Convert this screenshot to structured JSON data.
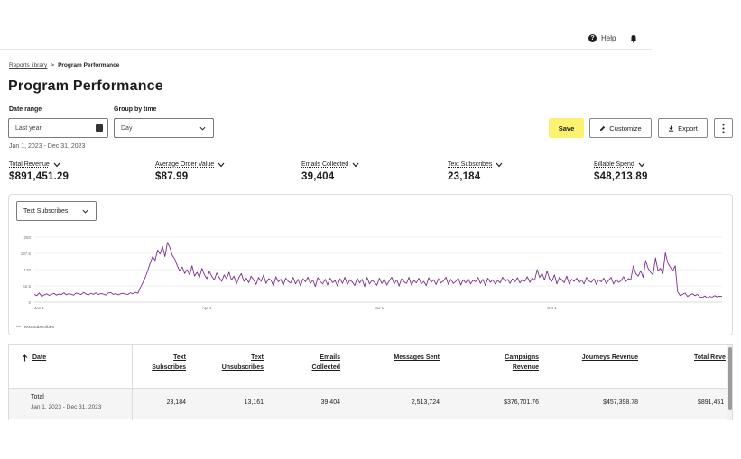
{
  "header": {
    "help_label": "Help"
  },
  "breadcrumb": {
    "parent": "Reports library",
    "separator": ">",
    "current": "Program Performance"
  },
  "page_title": "Program Performance",
  "filters": {
    "date_range_label": "Date range",
    "date_range_value": "Last year",
    "group_by_label": "Group by time",
    "group_by_value": "Day",
    "date_caption": "Jan 1, 2023 - Dec 31, 2023"
  },
  "actions": {
    "save": "Save",
    "customize": "Customize",
    "export": "Export"
  },
  "metrics": [
    {
      "label": "Total Revenue",
      "value": "$891,451.29"
    },
    {
      "label": "Average Order Value",
      "value": "$87.99"
    },
    {
      "label": "Emails Collected",
      "value": "39,404"
    },
    {
      "label": "Text Subscribes",
      "value": "23,184"
    },
    {
      "label": "Billable Spend",
      "value": "$48,213.89"
    }
  ],
  "chart_select": "Text Subscribes",
  "colors": {
    "series": "#7b2d8e",
    "save": "#fdf171",
    "text": "#1d1d1b"
  },
  "chart_data": {
    "type": "line",
    "x_ticks": [
      "Jan 1",
      "Apr 1",
      "Jul 1",
      "Oct 1"
    ],
    "y_ticks": [
      "0",
      "62.5",
      "125",
      "187.5",
      "250"
    ],
    "ylim": [
      0,
      250
    ],
    "grid": true,
    "legend": "bottom-left",
    "series": [
      {
        "name": "Text Subscribes",
        "values": [
          30,
          25,
          35,
          22,
          28,
          32,
          26,
          30,
          34,
          27,
          31,
          29,
          36,
          28,
          33,
          30,
          27,
          35,
          32,
          29,
          38,
          31,
          28,
          34,
          30,
          36,
          29,
          33,
          31,
          27,
          35,
          37,
          30,
          33,
          28,
          32,
          34,
          31,
          30,
          36,
          32,
          38,
          34,
          55,
          75,
          95,
          120,
          150,
          175,
          160,
          200,
          185,
          215,
          175,
          230,
          210,
          180,
          165,
          140,
          120,
          135,
          110,
          125,
          105,
          140,
          100,
          115,
          95,
          130,
          105,
          90,
          118,
          100,
          85,
          112,
          95,
          80,
          105,
          90,
          115,
          85,
          100,
          70,
          95,
          110,
          80,
          92,
          75,
          100,
          85,
          68,
          95,
          80,
          105,
          72,
          90,
          85,
          62,
          98,
          78,
          88,
          65,
          92,
          80,
          74,
          95,
          70,
          88,
          63,
          90,
          78,
          96,
          72,
          85,
          60,
          94,
          80,
          70,
          88,
          66,
          92,
          75,
          83,
          62,
          90,
          72,
          96,
          68,
          85,
          78,
          64,
          92,
          74,
          88,
          60,
          95,
          70,
          84,
          76,
          65,
          92,
          72,
          88,
          66,
          82,
          96,
          70,
          86,
          62,
          90,
          78,
          72,
          95,
          66,
          84,
          74,
          92,
          70,
          80,
          64,
          94,
          76,
          86,
          68,
          90,
          74,
          82,
          96,
          68,
          88,
          72,
          80,
          92,
          66,
          86,
          74,
          90,
          70,
          84,
          78,
          95,
          72,
          88,
          64,
          92,
          76,
          86,
          70,
          84,
          74,
          96,
          80,
          88,
          72,
          90,
          78,
          94,
          74,
          86,
          80,
          98,
          76,
          92,
          84,
          125,
          95,
          110,
          85,
          120,
          90,
          80,
          105,
          70,
          95,
          85,
          75,
          100,
          70,
          88,
          80,
          92,
          74,
          86,
          70,
          95,
          82,
          76,
          90,
          68,
          86,
          78,
          92,
          72,
          84,
          95,
          70,
          88,
          76,
          82,
          98,
          80,
          90,
          86,
          140,
          110,
          100,
          120,
          95,
          160,
          130,
          115,
          105,
          170,
          120,
          130,
          110,
          190,
          150,
          135,
          120,
          140,
          40,
          25,
          30,
          35,
          22,
          28,
          32,
          25,
          30,
          20,
          18,
          24,
          16,
          22,
          19,
          25,
          20,
          23,
          22
        ]
      }
    ]
  },
  "table": {
    "columns": [
      {
        "label": "Date"
      },
      {
        "label": "Text Subscribes"
      },
      {
        "label": "Text Unsubscribes"
      },
      {
        "label": "Emails Collected"
      },
      {
        "label": "Messages Sent"
      },
      {
        "label": "Campaigns Revenue"
      },
      {
        "label": "Journeys Revenue"
      },
      {
        "label": "Total Reve"
      }
    ],
    "total_row": {
      "label": "Total",
      "sublabel": "Jan 1, 2023 - Dec 31, 2023",
      "values": [
        "23,184",
        "13,161",
        "39,404",
        "2,513,724",
        "$376,701.76",
        "$457,398.78",
        "$891,451"
      ]
    }
  }
}
